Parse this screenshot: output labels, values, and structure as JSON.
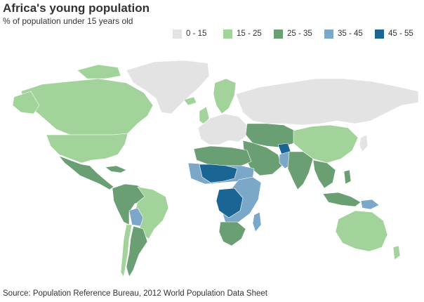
{
  "title": "Africa's young population",
  "subtitle": "% of population under 15 years old",
  "source": "Source: Population Reference Bureau, 2012 World Population Data Sheet",
  "legend": [
    {
      "label": "0 - 15",
      "color": "#e3e3e3"
    },
    {
      "label": "15 - 25",
      "color": "#a2d39b"
    },
    {
      "label": "25 - 35",
      "color": "#6a9e73"
    },
    {
      "label": "35 - 45",
      "color": "#7ba7c8"
    },
    {
      "label": "45 - 55",
      "color": "#1b6595"
    }
  ],
  "regions": [
    {
      "name": "greenland",
      "bin": 0
    },
    {
      "name": "russia",
      "bin": 0
    },
    {
      "name": "western-europe",
      "bin": 0
    },
    {
      "name": "japan",
      "bin": 0
    },
    {
      "name": "canada",
      "bin": 1
    },
    {
      "name": "usa",
      "bin": 1
    },
    {
      "name": "brazil",
      "bin": 1
    },
    {
      "name": "chile",
      "bin": 1
    },
    {
      "name": "china",
      "bin": 1
    },
    {
      "name": "australia",
      "bin": 1
    },
    {
      "name": "scandinavia",
      "bin": 1
    },
    {
      "name": "central-asia",
      "bin": 2
    },
    {
      "name": "mexico",
      "bin": 2
    },
    {
      "name": "andes",
      "bin": 2
    },
    {
      "name": "argentina",
      "bin": 2
    },
    {
      "name": "north-africa",
      "bin": 2
    },
    {
      "name": "southern-africa",
      "bin": 2
    },
    {
      "name": "india",
      "bin": 2
    },
    {
      "name": "southeast-asia",
      "bin": 2
    },
    {
      "name": "indonesia",
      "bin": 2
    },
    {
      "name": "middle-east",
      "bin": 2
    },
    {
      "name": "sahel",
      "bin": 3
    },
    {
      "name": "east-africa",
      "bin": 3
    },
    {
      "name": "pakistan",
      "bin": 3
    },
    {
      "name": "bolivia",
      "bin": 3
    },
    {
      "name": "madagascar",
      "bin": 3
    },
    {
      "name": "papua-new-guinea",
      "bin": 3
    },
    {
      "name": "west-central-africa",
      "bin": 4
    },
    {
      "name": "congo-basin",
      "bin": 4
    },
    {
      "name": "afghanistan",
      "bin": 4
    }
  ]
}
